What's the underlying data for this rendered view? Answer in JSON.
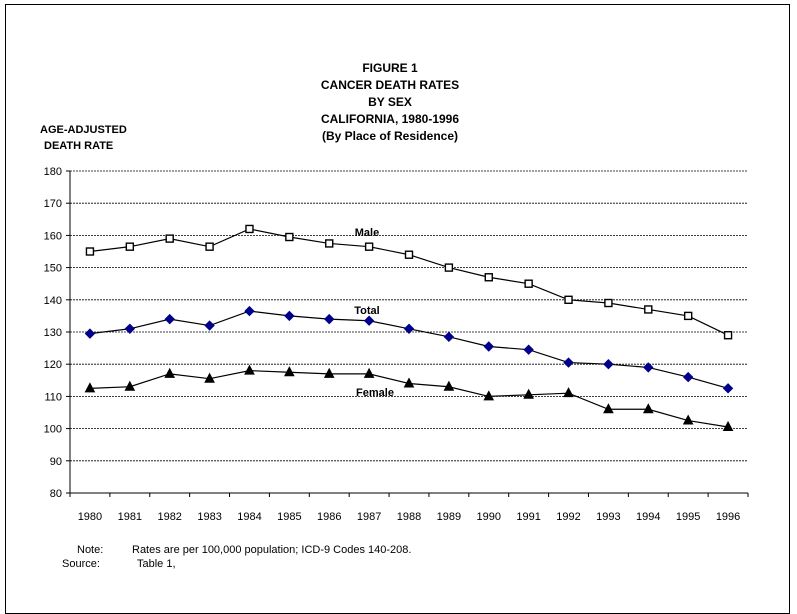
{
  "figure": {
    "label": "FIGURE 1",
    "title_lines": [
      "CANCER DEATH RATES",
      "BY SEX",
      "CALIFORNIA, 1980-1996",
      "(By Place of Residence)"
    ],
    "ylabel_lines": [
      "AGE-ADJUSTED",
      "DEATH RATE"
    ]
  },
  "notes": {
    "note_label": "Note:",
    "note_text": "Rates are per 100,000 population; ICD-9 Codes 140-208.",
    "source_label": "Source:",
    "source_text": "Table 1,"
  },
  "colors": {
    "male": "#000000",
    "total": "#00008B",
    "female": "#000000",
    "grid": "#000000"
  },
  "chart_data": {
    "type": "line",
    "x": [
      "1980",
      "1981",
      "1982",
      "1983",
      "1984",
      "1985",
      "1986",
      "1987",
      "1988",
      "1989",
      "1990",
      "1991",
      "1992",
      "1993",
      "1994",
      "1995",
      "1996"
    ],
    "ylim": [
      80,
      180
    ],
    "yticks": [
      80,
      90,
      100,
      110,
      120,
      130,
      140,
      150,
      160,
      170,
      180
    ],
    "grid": true,
    "series": [
      {
        "name": "Male",
        "marker": "square",
        "values": [
          155,
          156.5,
          159,
          156.5,
          162,
          159.5,
          157.5,
          156.5,
          154,
          150,
          147,
          145,
          140,
          139,
          137,
          135,
          129
        ]
      },
      {
        "name": "Total",
        "marker": "diamond",
        "values": [
          129.5,
          131,
          134,
          132,
          136.5,
          135,
          134,
          133.5,
          131,
          128.5,
          125.5,
          124.5,
          120.5,
          120,
          119,
          116,
          112.5
        ]
      },
      {
        "name": "Female",
        "marker": "triangle",
        "values": [
          112.5,
          113,
          117,
          115.5,
          118,
          117.5,
          117,
          117,
          114,
          113,
          110,
          110.5,
          111,
          106,
          106,
          102.5,
          100.5
        ]
      }
    ]
  }
}
